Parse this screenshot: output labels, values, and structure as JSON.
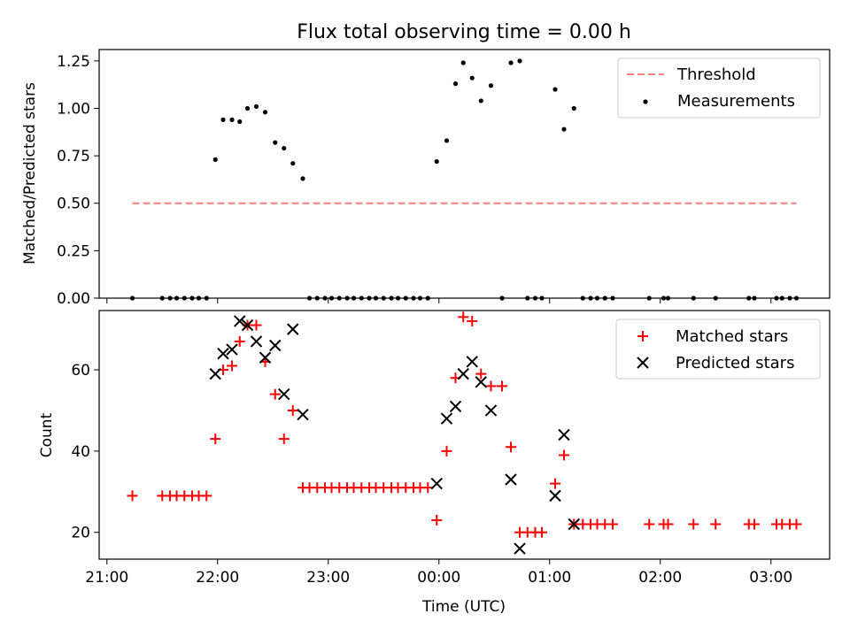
{
  "title": "Flux total observing time = 0.00 h",
  "chart_data": [
    {
      "type": "scatter",
      "ylabel": "Matched/Predicted stars",
      "ylim": [
        0,
        1.31
      ],
      "yticks": [
        0.0,
        0.25,
        0.5,
        0.75,
        1.0,
        1.25
      ],
      "ytick_labels": [
        "0.00",
        "0.25",
        "0.50",
        "0.75",
        "1.00",
        "1.25"
      ],
      "legend_position": "top-right",
      "legend": [
        {
          "label": "Threshold",
          "marker": "dashed-line",
          "color": "#ff8080"
        },
        {
          "label": "Measurements",
          "marker": "dot",
          "color": "#000000"
        }
      ],
      "threshold": {
        "y": 0.5,
        "x_start": 21.23,
        "x_end": 27.23
      },
      "series": [
        {
          "name": "Measurements",
          "color": "#000000",
          "points": [
            [
              21.23,
              0
            ],
            [
              21.5,
              0
            ],
            [
              21.57,
              0
            ],
            [
              21.63,
              0
            ],
            [
              21.7,
              0
            ],
            [
              21.77,
              0
            ],
            [
              21.83,
              0
            ],
            [
              21.9,
              0
            ],
            [
              21.98,
              0.73
            ],
            [
              22.05,
              0.94
            ],
            [
              22.13,
              0.94
            ],
            [
              22.2,
              0.93
            ],
            [
              22.27,
              1.0
            ],
            [
              22.35,
              1.01
            ],
            [
              22.43,
              0.98
            ],
            [
              22.52,
              0.82
            ],
            [
              22.6,
              0.79
            ],
            [
              22.68,
              0.71
            ],
            [
              22.77,
              0.63
            ],
            [
              22.83,
              0
            ],
            [
              22.9,
              0
            ],
            [
              22.97,
              0
            ],
            [
              23.03,
              0
            ],
            [
              23.1,
              0
            ],
            [
              23.17,
              0
            ],
            [
              23.23,
              0
            ],
            [
              23.3,
              0
            ],
            [
              23.37,
              0
            ],
            [
              23.43,
              0
            ],
            [
              23.5,
              0
            ],
            [
              23.57,
              0
            ],
            [
              23.63,
              0
            ],
            [
              23.7,
              0
            ],
            [
              23.77,
              0
            ],
            [
              23.83,
              0
            ],
            [
              23.9,
              0
            ],
            [
              23.98,
              0.72
            ],
            [
              24.07,
              0.83
            ],
            [
              24.15,
              1.13
            ],
            [
              24.22,
              1.24
            ],
            [
              24.3,
              1.16
            ],
            [
              24.38,
              1.04
            ],
            [
              24.47,
              1.12
            ],
            [
              24.57,
              0
            ],
            [
              24.65,
              1.24
            ],
            [
              24.73,
              1.25
            ],
            [
              24.8,
              0
            ],
            [
              24.87,
              0
            ],
            [
              24.93,
              0
            ],
            [
              25.05,
              1.1
            ],
            [
              25.13,
              0.89
            ],
            [
              25.22,
              1.0
            ],
            [
              25.3,
              0
            ],
            [
              25.37,
              0
            ],
            [
              25.43,
              0
            ],
            [
              25.5,
              0
            ],
            [
              25.57,
              0
            ],
            [
              25.9,
              0
            ],
            [
              26.03,
              0
            ],
            [
              26.07,
              0
            ],
            [
              26.3,
              0
            ],
            [
              26.5,
              0
            ],
            [
              26.8,
              0
            ],
            [
              26.85,
              0
            ],
            [
              27.05,
              0
            ],
            [
              27.1,
              0
            ],
            [
              27.17,
              0
            ],
            [
              27.23,
              0
            ]
          ]
        }
      ]
    },
    {
      "type": "scatter",
      "xlabel": "Time (UTC)",
      "ylabel": "Count",
      "ylim": [
        13.4,
        74.6
      ],
      "yticks": [
        20,
        40,
        60
      ],
      "ytick_labels": [
        "20",
        "40",
        "60"
      ],
      "xlim": [
        20.93,
        27.53
      ],
      "xticks": [
        21,
        22,
        23,
        24,
        25,
        26,
        27
      ],
      "xtick_labels": [
        "21:00",
        "22:00",
        "23:00",
        "00:00",
        "01:00",
        "02:00",
        "03:00"
      ],
      "legend_position": "top-right",
      "legend": [
        {
          "label": "Matched stars",
          "marker": "plus",
          "color": "#ff0000"
        },
        {
          "label": "Predicted stars",
          "marker": "x",
          "color": "#000000"
        }
      ],
      "series": [
        {
          "name": "Matched stars",
          "color": "#ff0000",
          "points": [
            [
              21.23,
              29
            ],
            [
              21.5,
              29
            ],
            [
              21.57,
              29
            ],
            [
              21.63,
              29
            ],
            [
              21.7,
              29
            ],
            [
              21.77,
              29
            ],
            [
              21.83,
              29
            ],
            [
              21.9,
              29
            ],
            [
              21.98,
              43
            ],
            [
              22.05,
              60
            ],
            [
              22.13,
              61
            ],
            [
              22.2,
              67
            ],
            [
              22.27,
              71
            ],
            [
              22.35,
              71
            ],
            [
              22.43,
              62
            ],
            [
              22.52,
              54
            ],
            [
              22.6,
              43
            ],
            [
              22.68,
              50
            ],
            [
              22.77,
              31
            ],
            [
              22.83,
              31
            ],
            [
              22.9,
              31
            ],
            [
              22.97,
              31
            ],
            [
              23.03,
              31
            ],
            [
              23.1,
              31
            ],
            [
              23.17,
              31
            ],
            [
              23.23,
              31
            ],
            [
              23.3,
              31
            ],
            [
              23.37,
              31
            ],
            [
              23.43,
              31
            ],
            [
              23.5,
              31
            ],
            [
              23.57,
              31
            ],
            [
              23.63,
              31
            ],
            [
              23.7,
              31
            ],
            [
              23.77,
              31
            ],
            [
              23.83,
              31
            ],
            [
              23.9,
              31
            ],
            [
              23.98,
              23
            ],
            [
              24.07,
              40
            ],
            [
              24.15,
              58
            ],
            [
              24.22,
              73
            ],
            [
              24.3,
              72
            ],
            [
              24.38,
              59
            ],
            [
              24.47,
              56
            ],
            [
              24.57,
              56
            ],
            [
              24.65,
              41
            ],
            [
              24.73,
              20
            ],
            [
              24.8,
              20
            ],
            [
              24.87,
              20
            ],
            [
              24.93,
              20
            ],
            [
              25.05,
              32
            ],
            [
              25.13,
              39
            ],
            [
              25.22,
              22
            ],
            [
              25.3,
              22
            ],
            [
              25.37,
              22
            ],
            [
              25.43,
              22
            ],
            [
              25.5,
              22
            ],
            [
              25.57,
              22
            ],
            [
              25.9,
              22
            ],
            [
              26.03,
              22
            ],
            [
              26.07,
              22
            ],
            [
              26.3,
              22
            ],
            [
              26.5,
              22
            ],
            [
              26.8,
              22
            ],
            [
              26.85,
              22
            ],
            [
              27.05,
              22
            ],
            [
              27.1,
              22
            ],
            [
              27.17,
              22
            ],
            [
              27.23,
              22
            ]
          ]
        },
        {
          "name": "Predicted stars",
          "color": "#000000",
          "points": [
            [
              21.98,
              59
            ],
            [
              22.05,
              64
            ],
            [
              22.13,
              65
            ],
            [
              22.2,
              72
            ],
            [
              22.27,
              71
            ],
            [
              22.35,
              67
            ],
            [
              22.43,
              63
            ],
            [
              22.52,
              66
            ],
            [
              22.6,
              54
            ],
            [
              22.68,
              70
            ],
            [
              22.77,
              49
            ],
            [
              23.98,
              32
            ],
            [
              24.07,
              48
            ],
            [
              24.15,
              51
            ],
            [
              24.22,
              59
            ],
            [
              24.3,
              62
            ],
            [
              24.38,
              57
            ],
            [
              24.47,
              50
            ],
            [
              24.65,
              33
            ],
            [
              24.73,
              16
            ],
            [
              25.05,
              29
            ],
            [
              25.13,
              44
            ],
            [
              25.22,
              22
            ]
          ]
        }
      ]
    }
  ]
}
